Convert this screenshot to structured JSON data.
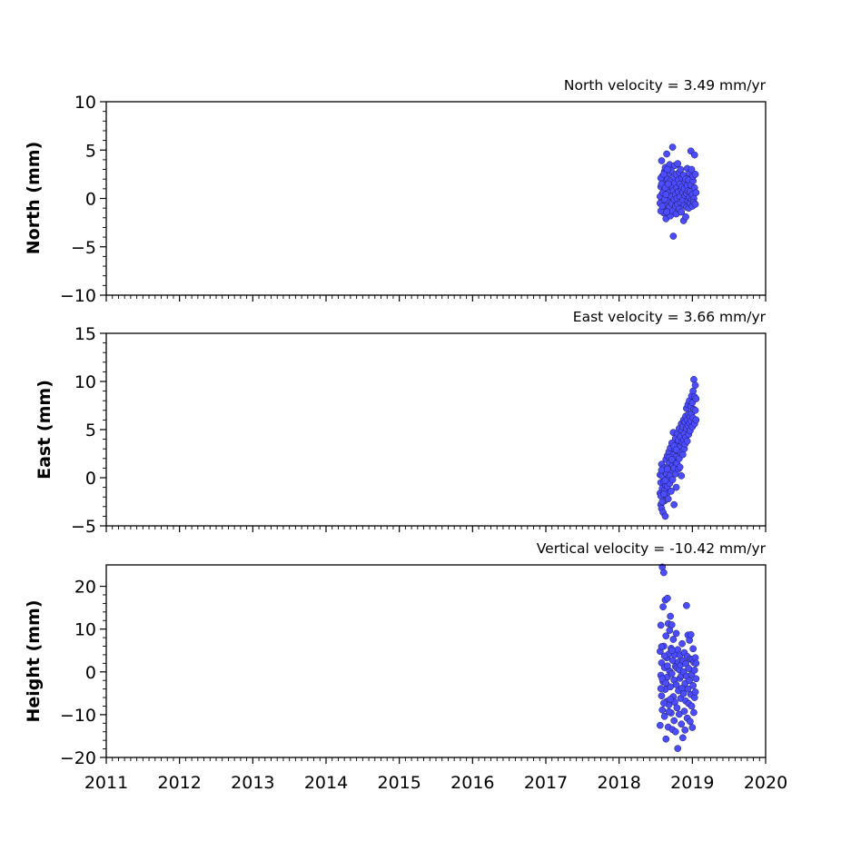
{
  "chart_data": [
    {
      "type": "scatter",
      "title": "North velocity = 3.49 mm/yr",
      "xlabel": "",
      "ylabel": "North (mm)",
      "xlim": [
        2011,
        2020
      ],
      "ylim": [
        -10,
        10
      ],
      "xticks": [
        2011,
        2012,
        2013,
        2014,
        2015,
        2016,
        2017,
        2018,
        2019,
        2020
      ],
      "yticks": [
        -10,
        -5,
        0,
        5,
        10
      ],
      "marker_color": "#4c4cff",
      "points": [
        [
          2018.57,
          1.2
        ],
        [
          2018.58,
          -0.3
        ],
        [
          2018.58,
          3.9
        ],
        [
          2018.59,
          0.5
        ],
        [
          2018.59,
          2.3
        ],
        [
          2018.6,
          -1.0
        ],
        [
          2018.6,
          1.7
        ],
        [
          2018.61,
          0.1
        ],
        [
          2018.61,
          -1.5
        ],
        [
          2018.62,
          2.8
        ],
        [
          2018.62,
          0.9
        ],
        [
          2018.63,
          -0.7
        ],
        [
          2018.63,
          3.2
        ],
        [
          2018.64,
          1.4
        ],
        [
          2018.64,
          -2.1
        ],
        [
          2018.65,
          0.3
        ],
        [
          2018.65,
          4.6
        ],
        [
          2018.66,
          2.0
        ],
        [
          2018.66,
          -0.2
        ],
        [
          2018.67,
          1.0
        ],
        [
          2018.67,
          -1.2
        ],
        [
          2018.68,
          2.6
        ],
        [
          2018.68,
          0.6
        ],
        [
          2018.69,
          3.5
        ],
        [
          2018.69,
          -0.9
        ],
        [
          2018.7,
          1.8
        ],
        [
          2018.7,
          -1.8
        ],
        [
          2018.71,
          0.2
        ],
        [
          2018.71,
          2.9
        ],
        [
          2018.72,
          -0.5
        ],
        [
          2018.72,
          1.3
        ],
        [
          2018.73,
          5.3
        ],
        [
          2018.73,
          -1.3
        ],
        [
          2018.74,
          0.8
        ],
        [
          2018.74,
          -3.9
        ],
        [
          2018.75,
          2.2
        ],
        [
          2018.75,
          -0.1
        ],
        [
          2018.76,
          1.6
        ],
        [
          2018.76,
          3.4
        ],
        [
          2018.77,
          -0.8
        ],
        [
          2018.77,
          0.4
        ],
        [
          2018.78,
          2.5
        ],
        [
          2018.78,
          -1.6
        ],
        [
          2018.79,
          1.1
        ],
        [
          2018.79,
          0.0
        ],
        [
          2018.8,
          3.6
        ],
        [
          2018.8,
          -0.6
        ],
        [
          2018.81,
          1.9
        ],
        [
          2018.81,
          0.7
        ],
        [
          2018.82,
          -1.1
        ],
        [
          2018.82,
          2.7
        ],
        [
          2018.83,
          0.2
        ],
        [
          2018.83,
          1.5
        ],
        [
          2018.84,
          -0.4
        ],
        [
          2018.84,
          3.0
        ],
        [
          2018.85,
          0.9
        ],
        [
          2018.85,
          -1.4
        ],
        [
          2018.86,
          2.1
        ],
        [
          2018.86,
          1.2
        ],
        [
          2018.87,
          -0.2
        ],
        [
          2018.87,
          0.6
        ],
        [
          2018.88,
          2.4
        ],
        [
          2018.88,
          -2.3
        ],
        [
          2018.89,
          1.0
        ],
        [
          2018.89,
          -0.7
        ],
        [
          2018.9,
          1.7
        ],
        [
          2018.9,
          0.3
        ],
        [
          2018.91,
          -1.9
        ],
        [
          2018.91,
          2.0
        ],
        [
          2018.92,
          0.5
        ],
        [
          2018.92,
          -0.9
        ],
        [
          2018.93,
          1.3
        ],
        [
          2018.93,
          3.1
        ],
        [
          2018.94,
          -0.3
        ],
        [
          2018.94,
          0.8
        ],
        [
          2018.95,
          1.9
        ],
        [
          2018.95,
          -1.0
        ],
        [
          2018.96,
          0.1
        ],
        [
          2018.96,
          2.6
        ],
        [
          2018.97,
          0.7
        ],
        [
          2018.97,
          -0.5
        ],
        [
          2018.98,
          4.9
        ],
        [
          2018.98,
          1.4
        ],
        [
          2018.99,
          -0.1
        ],
        [
          2018.99,
          3.0
        ],
        [
          2019.0,
          0.4
        ],
        [
          2019.0,
          -0.8
        ],
        [
          2019.01,
          1.8
        ],
        [
          2019.01,
          2.3
        ],
        [
          2019.02,
          0.0
        ],
        [
          2019.02,
          -0.4
        ],
        [
          2019.03,
          4.5
        ],
        [
          2019.03,
          1.1
        ],
        [
          2019.04,
          -0.6
        ],
        [
          2019.04,
          2.5
        ],
        [
          2019.05,
          0.6
        ],
        [
          2018.56,
          -0.5
        ],
        [
          2018.56,
          0.2
        ],
        [
          2018.57,
          2.1
        ],
        [
          2018.57,
          -1.3
        ],
        [
          2018.58,
          1.5
        ],
        [
          2018.59,
          -0.8
        ],
        [
          2018.6,
          0.6
        ],
        [
          2018.61,
          2.5
        ],
        [
          2018.62,
          -0.1
        ],
        [
          2018.63,
          1.1
        ],
        [
          2018.64,
          0.4
        ],
        [
          2018.65,
          -1.4
        ],
        [
          2018.66,
          3.0
        ],
        [
          2018.67,
          1.5
        ]
      ]
    },
    {
      "type": "scatter",
      "title": "East velocity = 3.66 mm/yr",
      "xlabel": "",
      "ylabel": "East (mm)",
      "xlim": [
        2011,
        2020
      ],
      "ylim": [
        -5,
        15
      ],
      "xticks": [
        2011,
        2012,
        2013,
        2014,
        2015,
        2016,
        2017,
        2018,
        2019,
        2020
      ],
      "yticks": [
        -5,
        0,
        5,
        10,
        15
      ],
      "marker_color": "#4c4cff",
      "points": [
        [
          2018.56,
          0.3
        ],
        [
          2018.56,
          -1.6
        ],
        [
          2018.57,
          -2.8
        ],
        [
          2018.57,
          -0.5
        ],
        [
          2018.58,
          1.4
        ],
        [
          2018.58,
          -3.2
        ],
        [
          2018.59,
          -1.1
        ],
        [
          2018.59,
          0.2
        ],
        [
          2018.6,
          -2.0
        ],
        [
          2018.6,
          -3.6
        ],
        [
          2018.61,
          -0.4
        ],
        [
          2018.61,
          1.0
        ],
        [
          2018.62,
          -2.4
        ],
        [
          2018.62,
          -1.3
        ],
        [
          2018.63,
          0.6
        ],
        [
          2018.63,
          -4.0
        ],
        [
          2018.64,
          -0.8
        ],
        [
          2018.64,
          1.9
        ],
        [
          2018.65,
          -1.7
        ],
        [
          2018.65,
          0.4
        ],
        [
          2018.66,
          2.3
        ],
        [
          2018.66,
          -0.9
        ],
        [
          2018.67,
          1.2
        ],
        [
          2018.67,
          -2.2
        ],
        [
          2018.68,
          0.0
        ],
        [
          2018.68,
          2.7
        ],
        [
          2018.69,
          -0.6
        ],
        [
          2018.69,
          1.6
        ],
        [
          2018.7,
          3.1
        ],
        [
          2018.7,
          0.3
        ],
        [
          2018.71,
          -1.4
        ],
        [
          2018.71,
          2.0
        ],
        [
          2018.72,
          0.8
        ],
        [
          2018.72,
          3.6
        ],
        [
          2018.73,
          1.3
        ],
        [
          2018.73,
          -0.2
        ],
        [
          2018.74,
          2.4
        ],
        [
          2018.74,
          4.7
        ],
        [
          2018.75,
          1.0
        ],
        [
          2018.75,
          -2.8
        ],
        [
          2018.76,
          3.0
        ],
        [
          2018.76,
          1.7
        ],
        [
          2018.77,
          0.4
        ],
        [
          2018.77,
          4.1
        ],
        [
          2018.78,
          2.2
        ],
        [
          2018.78,
          -1.0
        ],
        [
          2018.79,
          3.4
        ],
        [
          2018.79,
          1.5
        ],
        [
          2018.8,
          4.6
        ],
        [
          2018.8,
          2.8
        ],
        [
          2018.81,
          0.9
        ],
        [
          2018.81,
          3.9
        ],
        [
          2018.82,
          2.0
        ],
        [
          2018.82,
          5.1
        ],
        [
          2018.83,
          3.2
        ],
        [
          2018.83,
          1.1
        ],
        [
          2018.84,
          4.3
        ],
        [
          2018.84,
          2.6
        ],
        [
          2018.85,
          5.6
        ],
        [
          2018.85,
          0.2
        ],
        [
          2018.86,
          3.7
        ],
        [
          2018.86,
          4.9
        ],
        [
          2018.87,
          2.4
        ],
        [
          2018.87,
          5.3
        ],
        [
          2018.88,
          3.9
        ],
        [
          2018.88,
          6.0
        ],
        [
          2018.89,
          3.0
        ],
        [
          2018.89,
          4.6
        ],
        [
          2018.9,
          5.8
        ],
        [
          2018.9,
          3.5
        ],
        [
          2018.91,
          6.4
        ],
        [
          2018.91,
          4.2
        ],
        [
          2018.92,
          5.1
        ],
        [
          2018.92,
          7.2
        ],
        [
          2018.93,
          3.8
        ],
        [
          2018.93,
          6.0
        ],
        [
          2018.94,
          5.4
        ],
        [
          2018.94,
          7.6
        ],
        [
          2018.95,
          4.5
        ],
        [
          2018.95,
          6.6
        ],
        [
          2018.96,
          5.7
        ],
        [
          2018.96,
          8.0
        ],
        [
          2018.97,
          6.3
        ],
        [
          2018.97,
          4.9
        ],
        [
          2018.98,
          7.4
        ],
        [
          2018.98,
          5.9
        ],
        [
          2018.99,
          8.5
        ],
        [
          2018.99,
          6.7
        ],
        [
          2019.0,
          5.3
        ],
        [
          2019.0,
          7.8
        ],
        [
          2019.01,
          9.0
        ],
        [
          2019.01,
          6.2
        ],
        [
          2019.02,
          10.2
        ],
        [
          2019.02,
          7.1
        ],
        [
          2019.03,
          8.4
        ],
        [
          2019.03,
          5.6
        ],
        [
          2019.04,
          9.6
        ],
        [
          2019.04,
          7.0
        ],
        [
          2019.05,
          8.2
        ],
        [
          2019.05,
          6.0
        ],
        [
          2018.57,
          -1.9
        ],
        [
          2018.58,
          0.8
        ],
        [
          2018.59,
          -2.5
        ],
        [
          2018.61,
          -1.7
        ],
        [
          2018.63,
          -0.3
        ],
        [
          2018.66,
          0.9
        ],
        [
          2018.69,
          2.1
        ],
        [
          2018.72,
          1.9
        ],
        [
          2018.75,
          3.3
        ],
        [
          2018.78,
          2.9
        ]
      ]
    },
    {
      "type": "scatter",
      "title": "Vertical velocity = -10.42 mm/yr",
      "xlabel": "",
      "ylabel": "Height (mm)",
      "xlim": [
        2011,
        2020
      ],
      "ylim": [
        -20,
        25
      ],
      "xticks": [
        2011,
        2012,
        2013,
        2014,
        2015,
        2016,
        2017,
        2018,
        2019,
        2020
      ],
      "xtick_labels": [
        "2011",
        "2012",
        "2013",
        "2014",
        "2015",
        "2016",
        "2017",
        "2018",
        "2019",
        "2020"
      ],
      "yticks": [
        -20,
        -10,
        0,
        10,
        20
      ],
      "marker_color": "#4c4cff",
      "points": [
        [
          2018.56,
          -12.5
        ],
        [
          2018.56,
          4.8
        ],
        [
          2018.57,
          -0.8
        ],
        [
          2018.57,
          10.9
        ],
        [
          2018.58,
          -5.6
        ],
        [
          2018.58,
          2.1
        ],
        [
          2018.59,
          24.5
        ],
        [
          2018.59,
          -8.9
        ],
        [
          2018.6,
          15.2
        ],
        [
          2018.6,
          -2.3
        ],
        [
          2018.61,
          23.2
        ],
        [
          2018.61,
          6.0
        ],
        [
          2018.62,
          -10.4
        ],
        [
          2018.62,
          1.0
        ],
        [
          2018.63,
          16.8
        ],
        [
          2018.63,
          -4.1
        ],
        [
          2018.64,
          8.4
        ],
        [
          2018.64,
          -15.7
        ],
        [
          2018.65,
          3.3
        ],
        [
          2018.65,
          -6.9
        ],
        [
          2018.66,
          17.2
        ],
        [
          2018.66,
          -1.2
        ],
        [
          2018.67,
          11.3
        ],
        [
          2018.67,
          -12.9
        ],
        [
          2018.68,
          4.2
        ],
        [
          2018.68,
          -7.7
        ],
        [
          2018.69,
          9.7
        ],
        [
          2018.69,
          0.2
        ],
        [
          2018.7,
          -3.5
        ],
        [
          2018.7,
          13.0
        ],
        [
          2018.71,
          -9.6
        ],
        [
          2018.71,
          5.5
        ],
        [
          2018.72,
          -0.4
        ],
        [
          2018.72,
          11.0
        ],
        [
          2018.73,
          -13.5
        ],
        [
          2018.73,
          2.7
        ],
        [
          2018.74,
          -5.8
        ],
        [
          2018.74,
          7.6
        ],
        [
          2018.75,
          -1.9
        ],
        [
          2018.75,
          -11.4
        ],
        [
          2018.76,
          4.0
        ],
        [
          2018.76,
          -7.1
        ],
        [
          2018.77,
          1.3
        ],
        [
          2018.77,
          -14.0
        ],
        [
          2018.78,
          9.0
        ],
        [
          2018.78,
          -3.0
        ],
        [
          2018.79,
          0.9
        ],
        [
          2018.79,
          -8.4
        ],
        [
          2018.8,
          5.2
        ],
        [
          2018.8,
          -17.9
        ],
        [
          2018.81,
          -4.4
        ],
        [
          2018.81,
          2.3
        ],
        [
          2018.82,
          -9.9
        ],
        [
          2018.82,
          0.5
        ],
        [
          2018.83,
          -1.5
        ],
        [
          2018.83,
          3.9
        ],
        [
          2018.84,
          -6.2
        ],
        [
          2018.84,
          1.6
        ],
        [
          2018.85,
          -12.2
        ],
        [
          2018.85,
          -0.9
        ],
        [
          2018.86,
          6.6
        ],
        [
          2018.86,
          -3.8
        ],
        [
          2018.87,
          -15.4
        ],
        [
          2018.87,
          2.6
        ],
        [
          2018.88,
          -5.1
        ],
        [
          2018.88,
          0.0
        ],
        [
          2018.89,
          -9.2
        ],
        [
          2018.89,
          4.5
        ],
        [
          2018.9,
          -2.7
        ],
        [
          2018.9,
          -13.6
        ],
        [
          2018.91,
          1.9
        ],
        [
          2018.91,
          -6.8
        ],
        [
          2018.92,
          15.5
        ],
        [
          2018.92,
          -1.0
        ],
        [
          2018.93,
          3.6
        ],
        [
          2018.93,
          -10.8
        ],
        [
          2018.94,
          -4.0
        ],
        [
          2018.94,
          8.6
        ],
        [
          2018.95,
          -7.4
        ],
        [
          2018.95,
          0.8
        ],
        [
          2018.96,
          -2.0
        ],
        [
          2018.96,
          7.4
        ],
        [
          2018.97,
          -11.6
        ],
        [
          2018.97,
          3.0
        ],
        [
          2018.98,
          -5.3
        ],
        [
          2018.98,
          8.7
        ],
        [
          2018.99,
          -0.6
        ],
        [
          2018.99,
          -8.0
        ],
        [
          2019.0,
          2.9
        ],
        [
          2019.0,
          -13.0
        ],
        [
          2019.01,
          -3.2
        ],
        [
          2019.01,
          5.4
        ],
        [
          2019.02,
          -9.5
        ],
        [
          2019.02,
          2.2
        ],
        [
          2019.03,
          -6.0
        ],
        [
          2019.03,
          0.4
        ],
        [
          2019.04,
          3.3
        ],
        [
          2019.04,
          -4.7
        ],
        [
          2019.05,
          -1.6
        ],
        [
          2019.05,
          2.0
        ],
        [
          2018.57,
          -3.9
        ],
        [
          2018.58,
          5.9
        ],
        [
          2018.59,
          -1.6
        ],
        [
          2018.61,
          -7.3
        ],
        [
          2018.62,
          3.7
        ],
        [
          2018.64,
          -2.6
        ],
        [
          2018.66,
          1.4
        ],
        [
          2018.68,
          -9.3
        ],
        [
          2018.7,
          -6.4
        ],
        [
          2018.72,
          5.0
        ]
      ]
    }
  ]
}
